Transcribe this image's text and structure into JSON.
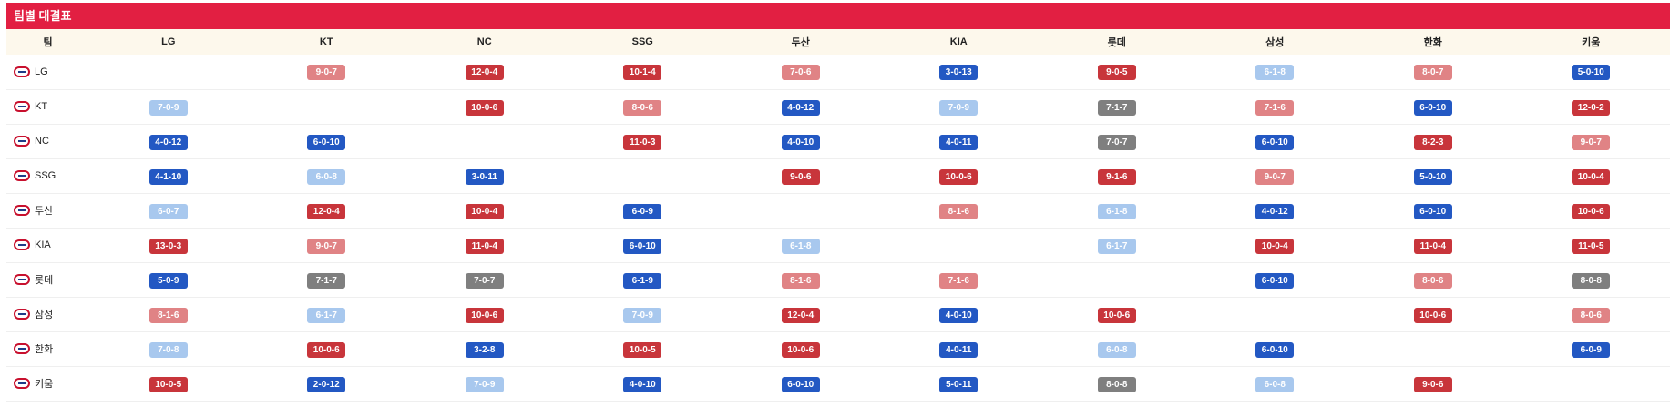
{
  "title": "팀별 대결표",
  "header": {
    "corner": "팀",
    "columns": [
      "LG",
      "KT",
      "NC",
      "SSG",
      "두산",
      "KIA",
      "롯데",
      "삼성",
      "한화",
      "키움"
    ]
  },
  "rows": [
    {
      "team": "LG",
      "logo": "twins-logo",
      "cells": [
        null,
        "9-0-7",
        "12-0-4",
        "10-1-4",
        "7-0-6",
        "3-0-13",
        "9-0-5",
        "6-1-8",
        "8-0-7",
        "5-0-10"
      ]
    },
    {
      "team": "KT",
      "logo": "wiz-logo",
      "cells": [
        "7-0-9",
        null,
        "10-0-6",
        "8-0-6",
        "4-0-12",
        "7-0-9",
        "7-1-7",
        "7-1-6",
        "6-0-10",
        "12-0-2"
      ]
    },
    {
      "team": "NC",
      "logo": "dinos-logo",
      "cells": [
        "4-0-12",
        "6-0-10",
        null,
        "11-0-3",
        "4-0-10",
        "4-0-11",
        "7-0-7",
        "6-0-10",
        "8-2-3",
        "9-0-7"
      ]
    },
    {
      "team": "SSG",
      "logo": "landers-logo",
      "cells": [
        "4-1-10",
        "6-0-8",
        "3-0-11",
        null,
        "9-0-6",
        "10-0-6",
        "9-1-6",
        "9-0-7",
        "5-0-10",
        "10-0-4"
      ]
    },
    {
      "team": "두산",
      "logo": "bears-logo",
      "cells": [
        "6-0-7",
        "12-0-4",
        "10-0-4",
        "6-0-9",
        null,
        "8-1-6",
        "6-1-8",
        "4-0-12",
        "6-0-10",
        "10-0-6"
      ]
    },
    {
      "team": "KIA",
      "logo": "tigers-logo",
      "cells": [
        "13-0-3",
        "9-0-7",
        "11-0-4",
        "6-0-10",
        "6-1-8",
        null,
        "6-1-7",
        "10-0-4",
        "11-0-4",
        "11-0-5"
      ]
    },
    {
      "team": "롯데",
      "logo": "giants-logo",
      "cells": [
        "5-0-9",
        "7-1-7",
        "7-0-7",
        "6-1-9",
        "8-1-6",
        "7-1-6",
        null,
        "6-0-10",
        "8-0-6",
        "8-0-8"
      ]
    },
    {
      "team": "삼성",
      "logo": "lions-logo",
      "cells": [
        "8-1-6",
        "6-1-7",
        "10-0-6",
        "7-0-9",
        "12-0-4",
        "4-0-10",
        "10-0-6",
        null,
        "10-0-6",
        "8-0-6"
      ]
    },
    {
      "team": "한화",
      "logo": "eagles-logo",
      "cells": [
        "7-0-8",
        "10-0-6",
        "3-2-8",
        "10-0-5",
        "10-0-6",
        "4-0-11",
        "6-0-8",
        "6-0-10",
        null,
        "6-0-9"
      ]
    },
    {
      "team": "키움",
      "logo": "heroes-logo",
      "cells": [
        "10-0-5",
        "2-0-12",
        "7-0-9",
        "4-0-10",
        "6-0-10",
        "5-0-11",
        "8-0-8",
        "6-0-8",
        "9-0-6",
        null
      ]
    }
  ],
  "colors": {
    "header_red": "#e21f42",
    "win_strong": "#c8353b",
    "win_light": "#e08385",
    "loss_strong": "#2358c3",
    "loss_light": "#a8c8ee",
    "draw": "#7f7f7f",
    "header_row_bg": "#fdf8ec"
  }
}
